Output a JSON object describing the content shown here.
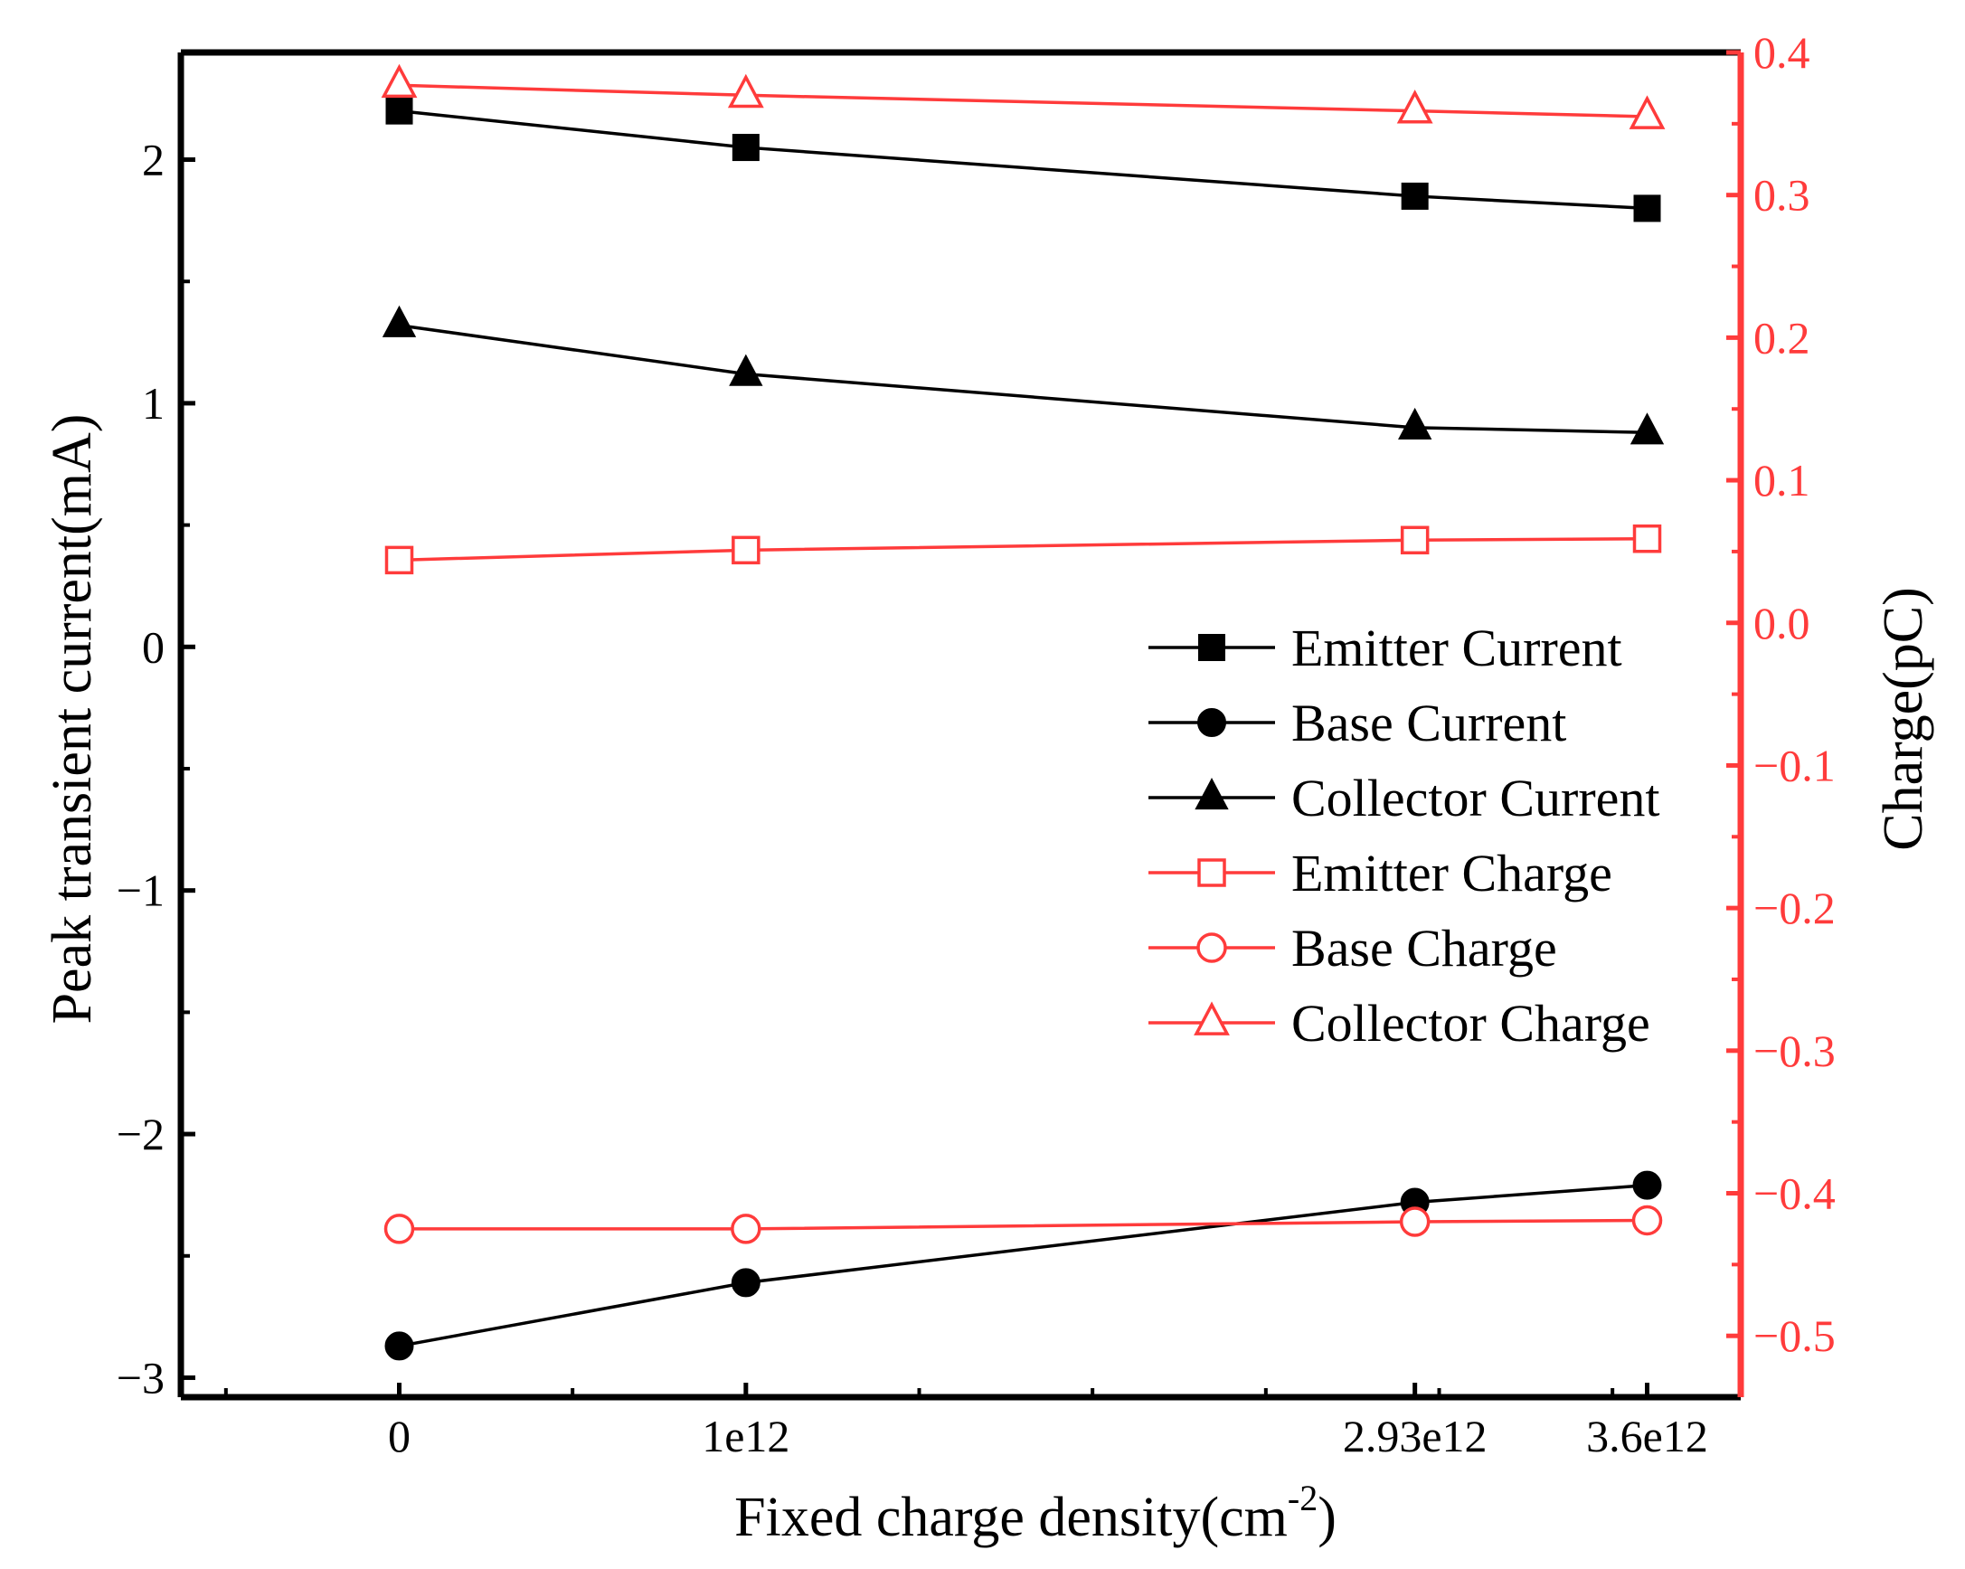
{
  "chart_data": {
    "type": "line",
    "x_values": [
      0,
      1000000000000.0,
      2930000000000.0,
      3600000000000.0
    ],
    "x_tick_labels": [
      "0",
      "1e12",
      "2.93e12",
      "3.6e12"
    ],
    "xlabel": {
      "base": "Fixed charge density(cm",
      "superscript": "-2",
      "suffix": ")"
    },
    "xlim": [
      -630000000000.0,
      3870000000000.0
    ],
    "y_left": {
      "label": "Peak transient current(mA)",
      "lim": [
        -3.08,
        2.44
      ],
      "ticks": [
        2,
        1,
        0,
        -1,
        -2,
        -3
      ],
      "tick_labels": [
        "2",
        "1",
        "0",
        "−1",
        "−2",
        "−3"
      ],
      "color": "#000000"
    },
    "y_right": {
      "label": "Charge(pC)",
      "lim": [
        -0.543,
        0.4
      ],
      "ticks": [
        0.4,
        0.3,
        0.2,
        0.1,
        0.0,
        -0.1,
        -0.2,
        -0.3,
        -0.4,
        -0.5
      ],
      "tick_labels": [
        "0.4",
        "0.3",
        "0.2",
        "0.1",
        "0.0",
        "−0.1",
        "−0.2",
        "−0.3",
        "−0.4",
        "−0.5"
      ],
      "color": "#ff3b3b"
    },
    "series": [
      {
        "name": "Emitter Current",
        "axis": "left",
        "marker": "square",
        "filled": true,
        "color": "#000000",
        "values": [
          2.2,
          2.05,
          1.85,
          1.8
        ]
      },
      {
        "name": "Base Current",
        "axis": "left",
        "marker": "circle",
        "filled": true,
        "color": "#000000",
        "values": [
          -2.87,
          -2.61,
          -2.28,
          -2.21
        ]
      },
      {
        "name": "Collector Current",
        "axis": "left",
        "marker": "triangle",
        "filled": true,
        "color": "#000000",
        "values": [
          1.32,
          1.12,
          0.9,
          0.88
        ]
      },
      {
        "name": "Emitter Charge",
        "axis": "right",
        "marker": "square",
        "filled": false,
        "color": "#ff3b3b",
        "values": [
          0.044,
          0.051,
          0.058,
          0.059
        ]
      },
      {
        "name": "Base Charge",
        "axis": "right",
        "marker": "circle",
        "filled": false,
        "color": "#ff3b3b",
        "values": [
          -0.425,
          -0.425,
          -0.42,
          -0.419
        ]
      },
      {
        "name": "Collector Charge",
        "axis": "right",
        "marker": "triangle",
        "filled": false,
        "color": "#ff3b3b",
        "values": [
          0.377,
          0.37,
          0.359,
          0.355
        ]
      }
    ],
    "legend": {
      "position": "center-right"
    },
    "grid": false
  }
}
